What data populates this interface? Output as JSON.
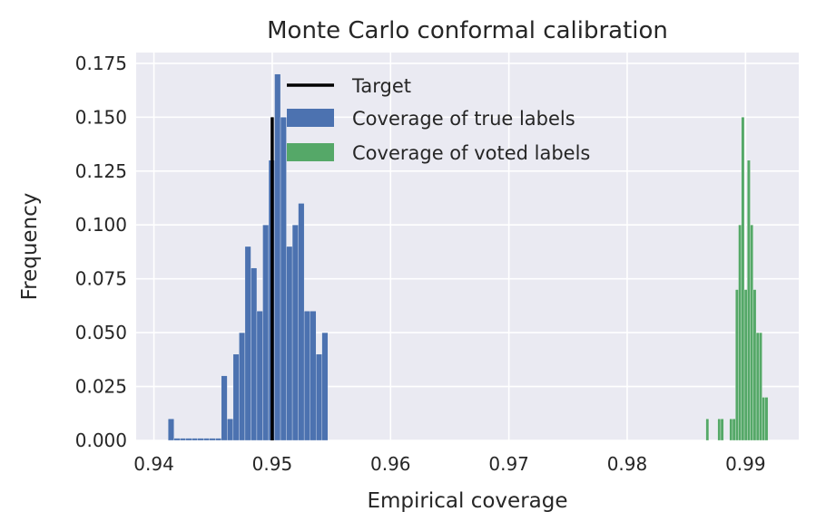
{
  "chart_data": {
    "type": "histogram",
    "title": "Monte Carlo conformal calibration",
    "xlabel": "Empirical coverage",
    "ylabel": "Frequency",
    "xlim": [
      0.9385,
      0.9945
    ],
    "ylim": [
      0,
      0.18
    ],
    "xticks": [
      0.94,
      0.95,
      0.96,
      0.97,
      0.98,
      0.99
    ],
    "xtick_labels": [
      "0.94",
      "0.95",
      "0.96",
      "0.97",
      "0.98",
      "0.99"
    ],
    "yticks": [
      0,
      0.025,
      0.05,
      0.075,
      0.1,
      0.125,
      0.15,
      0.175
    ],
    "ytick_labels": [
      "0.000",
      "0.025",
      "0.050",
      "0.075",
      "0.100",
      "0.125",
      "0.150",
      "0.175"
    ],
    "grid": true,
    "legend_position": "top-center",
    "target": {
      "name": "Target",
      "x": 0.95,
      "y_max": 0.15,
      "color": "#000000"
    },
    "series": [
      {
        "name": "Coverage of true labels",
        "color": "#4c72b0",
        "bins": [
          {
            "x0": 0.9412,
            "x1": 0.9417,
            "y": 0.01
          },
          {
            "x0": 0.9417,
            "x1": 0.9422,
            "y": 0.001
          },
          {
            "x0": 0.9422,
            "x1": 0.9427,
            "y": 0.001
          },
          {
            "x0": 0.9427,
            "x1": 0.9432,
            "y": 0.001
          },
          {
            "x0": 0.9432,
            "x1": 0.9437,
            "y": 0.001
          },
          {
            "x0": 0.9437,
            "x1": 0.9442,
            "y": 0.001
          },
          {
            "x0": 0.9442,
            "x1": 0.9447,
            "y": 0.001
          },
          {
            "x0": 0.9447,
            "x1": 0.9452,
            "y": 0.001
          },
          {
            "x0": 0.9452,
            "x1": 0.9457,
            "y": 0.001
          },
          {
            "x0": 0.9457,
            "x1": 0.9462,
            "y": 0.03
          },
          {
            "x0": 0.9462,
            "x1": 0.9467,
            "y": 0.01
          },
          {
            "x0": 0.9467,
            "x1": 0.9472,
            "y": 0.04
          },
          {
            "x0": 0.9472,
            "x1": 0.9477,
            "y": 0.05
          },
          {
            "x0": 0.9477,
            "x1": 0.9482,
            "y": 0.09
          },
          {
            "x0": 0.9482,
            "x1": 0.9487,
            "y": 0.08
          },
          {
            "x0": 0.9487,
            "x1": 0.9492,
            "y": 0.06
          },
          {
            "x0": 0.9492,
            "x1": 0.9497,
            "y": 0.1
          },
          {
            "x0": 0.9497,
            "x1": 0.9502,
            "y": 0.13
          },
          {
            "x0": 0.9502,
            "x1": 0.9507,
            "y": 0.17
          },
          {
            "x0": 0.9507,
            "x1": 0.9512,
            "y": 0.15
          },
          {
            "x0": 0.9512,
            "x1": 0.9517,
            "y": 0.09
          },
          {
            "x0": 0.9517,
            "x1": 0.9522,
            "y": 0.1
          },
          {
            "x0": 0.9522,
            "x1": 0.9527,
            "y": 0.11
          },
          {
            "x0": 0.9527,
            "x1": 0.9532,
            "y": 0.06
          },
          {
            "x0": 0.9532,
            "x1": 0.9537,
            "y": 0.06
          },
          {
            "x0": 0.9537,
            "x1": 0.9542,
            "y": 0.04
          },
          {
            "x0": 0.9542,
            "x1": 0.9547,
            "y": 0.05
          }
        ]
      },
      {
        "name": "Coverage of voted labels",
        "color": "#55a868",
        "bins": [
          {
            "x0": 0.98665,
            "x1": 0.9869,
            "y": 0.01
          },
          {
            "x0": 0.98765,
            "x1": 0.9879,
            "y": 0.01
          },
          {
            "x0": 0.9879,
            "x1": 0.98815,
            "y": 0.01
          },
          {
            "x0": 0.98865,
            "x1": 0.9889,
            "y": 0.01
          },
          {
            "x0": 0.9889,
            "x1": 0.98915,
            "y": 0.01
          },
          {
            "x0": 0.98915,
            "x1": 0.9894,
            "y": 0.07
          },
          {
            "x0": 0.9894,
            "x1": 0.98965,
            "y": 0.1
          },
          {
            "x0": 0.98965,
            "x1": 0.9899,
            "y": 0.15
          },
          {
            "x0": 0.9899,
            "x1": 0.99015,
            "y": 0.07
          },
          {
            "x0": 0.99015,
            "x1": 0.9904,
            "y": 0.13
          },
          {
            "x0": 0.9904,
            "x1": 0.99065,
            "y": 0.1
          },
          {
            "x0": 0.99065,
            "x1": 0.9909,
            "y": 0.07
          },
          {
            "x0": 0.9909,
            "x1": 0.99115,
            "y": 0.05
          },
          {
            "x0": 0.99115,
            "x1": 0.9914,
            "y": 0.05
          },
          {
            "x0": 0.9914,
            "x1": 0.99165,
            "y": 0.02
          },
          {
            "x0": 0.99165,
            "x1": 0.9919,
            "y": 0.02
          }
        ]
      }
    ]
  }
}
